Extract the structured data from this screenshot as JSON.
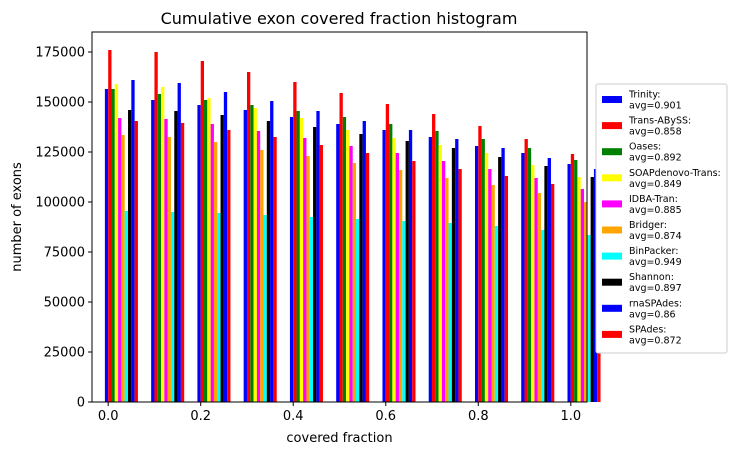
{
  "chart_data": {
    "type": "bar",
    "title": "Cumulative exon covered fraction histogram",
    "xlabel": "covered fraction",
    "ylabel": "number of exons",
    "categories": [
      0.0,
      0.1,
      0.2,
      0.3,
      0.4,
      0.5,
      0.6,
      0.7,
      0.8,
      0.9,
      1.0
    ],
    "x_ticks": [
      "0.0",
      "0.2",
      "0.4",
      "0.6",
      "0.8",
      "1.0"
    ],
    "y_ticks": [
      "0",
      "25000",
      "50000",
      "75000",
      "100000",
      "125000",
      "150000",
      "175000"
    ],
    "xlim": [
      -0.035,
      1.035
    ],
    "ylim": [
      0,
      185000
    ],
    "legend_position": "right",
    "series": [
      {
        "name": "Trinity:",
        "avg": "avg=0.901",
        "color": "#0000ff",
        "values": [
          156500,
          151000,
          148500,
          146000,
          142500,
          139000,
          136000,
          132500,
          128000,
          124500,
          119000
        ]
      },
      {
        "name": "Trans-ABySS:",
        "avg": "avg=0.858",
        "color": "#ff0000",
        "values": [
          176000,
          175000,
          170500,
          165000,
          160000,
          154500,
          149000,
          144000,
          138000,
          131500,
          124000
        ]
      },
      {
        "name": "Oases:",
        "avg": "avg=0.892",
        "color": "#008000",
        "values": [
          156500,
          154000,
          151000,
          148500,
          145500,
          142500,
          139000,
          135500,
          131500,
          127000,
          121000
        ]
      },
      {
        "name": "SOAPdenovo-Trans:",
        "avg": "avg=0.849",
        "color": "#ffff00",
        "values": [
          159000,
          157500,
          152000,
          147000,
          142000,
          136000,
          132000,
          128500,
          124500,
          118500,
          112500
        ]
      },
      {
        "name": "IDBA-Tran:",
        "avg": "avg=0.885",
        "color": "#ff00ff",
        "values": [
          142000,
          141500,
          139000,
          135500,
          132000,
          128000,
          124500,
          120500,
          116500,
          112000,
          106500
        ]
      },
      {
        "name": "Bridger:",
        "avg": "avg=0.874",
        "color": "#ffa500",
        "values": [
          133500,
          132500,
          130000,
          126000,
          123000,
          119500,
          116000,
          112000,
          108500,
          104500,
          100000
        ]
      },
      {
        "name": "BinPacker:",
        "avg": "avg=0.949",
        "color": "#00ffff",
        "values": [
          95500,
          95000,
          94500,
          93500,
          92500,
          91500,
          90500,
          89500,
          88000,
          86000,
          83500
        ]
      },
      {
        "name": "Shannon:",
        "avg": "avg=0.897",
        "color": "#000000",
        "values": [
          146000,
          145500,
          143500,
          140500,
          137500,
          134000,
          130500,
          127000,
          122500,
          118000,
          112500
        ]
      },
      {
        "name": "rnaSPAdes:",
        "avg": "avg=0.86",
        "color": "#0000ff",
        "values": [
          161000,
          159500,
          155000,
          150500,
          145500,
          140500,
          136000,
          131500,
          127000,
          122000,
          116500
        ]
      },
      {
        "name": "SPAdes:",
        "avg": "avg=0.872",
        "color": "#ff0000",
        "values": [
          140500,
          139500,
          136000,
          132500,
          128500,
          124500,
          120500,
          116500,
          113000,
          109000,
          104500
        ]
      }
    ]
  }
}
